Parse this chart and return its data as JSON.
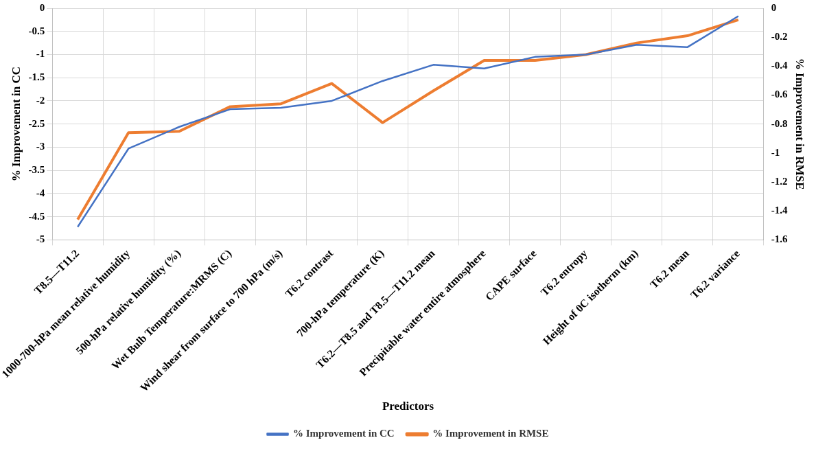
{
  "chart_data": {
    "type": "line",
    "categories": [
      "T8.5—T11.2",
      "1000-700-hPa mean relative humidity",
      "500-hPa relative humidity (%)",
      "Wet Bulb Temperature:MRMS (C)",
      "Wind shear from surface to 700 hPa (m/s)",
      "T6.2 contrast",
      "700-hPa temperature (K)",
      "T6.2—T8.5 and T8.5—T11.2 mean",
      "Precipitable water entire atmosphere",
      "CAPE surface",
      "T6.2 entropy",
      "Height of 0C isotherm (km)",
      "T6.2 mean",
      "T6.2 variance"
    ],
    "series": [
      {
        "name": "% Improvement in CC",
        "color": "#4472c4",
        "values": [
          -4.72,
          -3.03,
          -2.56,
          -2.18,
          -2.15,
          -2.0,
          -1.57,
          -1.22,
          -1.3,
          -1.05,
          -1.0,
          -0.79,
          -0.84,
          -0.17
        ]
      },
      {
        "name": "% Improvement in RMSE",
        "color": "#ed7d31",
        "axis": "y2",
        "values": [
          -1.46,
          -0.86,
          -0.85,
          -0.68,
          -0.66,
          -0.52,
          -0.79,
          -0.57,
          -0.36,
          -0.36,
          -0.32,
          -0.24,
          -0.19,
          -0.08
        ]
      }
    ],
    "xlabel": "Predictors",
    "ylabel": "% Improvement in CC",
    "y2label": "% Improvement in RMSE",
    "ylim": [
      -5,
      0
    ],
    "yticks": [
      -5,
      -4.5,
      -4,
      -3.5,
      -3,
      -2.5,
      -2,
      -1.5,
      -1,
      -0.5,
      0
    ],
    "y2lim": [
      -1.6,
      0
    ],
    "y2ticks": [
      -1.6,
      -1.4,
      -1.2,
      -1,
      -0.8,
      -0.6,
      -0.4,
      -0.2,
      0
    ],
    "grid": true,
    "legend": "bottom",
    "marker": "none",
    "line_style": "solid"
  }
}
